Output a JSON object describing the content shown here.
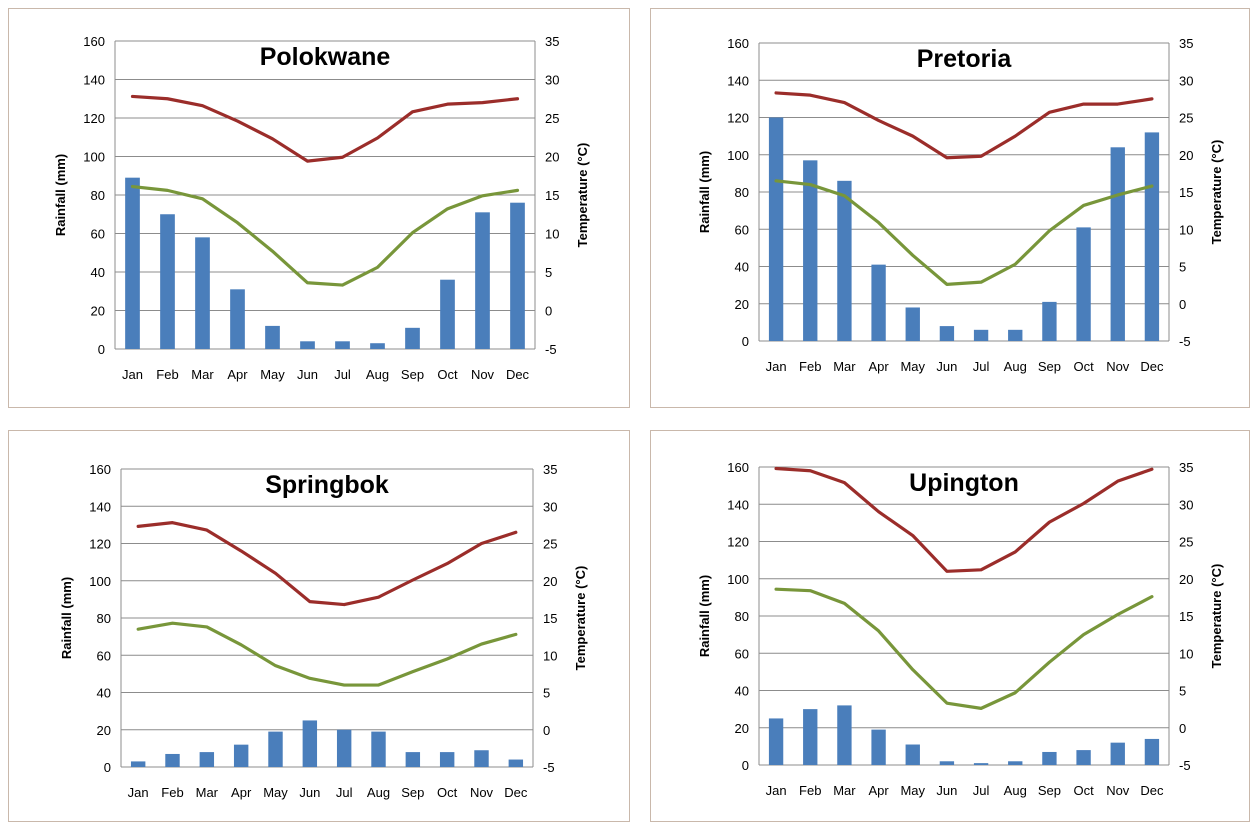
{
  "chart_data": [
    {
      "type": "bar",
      "title": "Polokwane",
      "categories": [
        "Jan",
        "Feb",
        "Mar",
        "Apr",
        "May",
        "Jun",
        "Jul",
        "Aug",
        "Sep",
        "Oct",
        "Nov",
        "Dec"
      ],
      "ylabel": "Rainfall  (mm)",
      "y2label": "Temperature (°C)",
      "ylim": [
        0,
        160
      ],
      "y2lim": [
        -5,
        35
      ],
      "yticks": [
        "0",
        "20",
        "40",
        "60",
        "80",
        "100",
        "120",
        "140",
        "160"
      ],
      "y2ticks": [
        "-5",
        "0",
        "5",
        "10",
        "15",
        "20",
        "25",
        "30",
        "35"
      ],
      "grid": true,
      "series": [
        {
          "type": "bar",
          "axis": "left",
          "color": "#4a7ebb",
          "values": [
            89,
            70,
            58,
            31,
            12,
            4,
            4,
            3,
            11,
            36,
            71,
            76
          ]
        },
        {
          "type": "line",
          "axis": "right",
          "color": "#9b2d2a",
          "values": [
            27.8,
            27.5,
            26.6,
            24.6,
            22.3,
            19.4,
            19.9,
            22.4,
            25.8,
            26.8,
            27.0,
            27.5
          ]
        },
        {
          "type": "line",
          "axis": "right",
          "color": "#78963a",
          "values": [
            16.1,
            15.6,
            14.5,
            11.4,
            7.7,
            3.6,
            3.3,
            5.6,
            10.1,
            13.2,
            14.9,
            15.6
          ]
        }
      ]
    },
    {
      "type": "bar",
      "title": "Pretoria",
      "categories": [
        "Jan",
        "Feb",
        "Mar",
        "Apr",
        "May",
        "Jun",
        "Jul",
        "Aug",
        "Sep",
        "Oct",
        "Nov",
        "Dec"
      ],
      "ylabel": "Rainfall  (mm)",
      "y2label": "Temperature (°C)",
      "ylim": [
        0,
        160
      ],
      "y2lim": [
        -5,
        35
      ],
      "yticks": [
        "0",
        "20",
        "40",
        "60",
        "80",
        "100",
        "120",
        "140",
        "160"
      ],
      "y2ticks": [
        "-5",
        "0",
        "5",
        "10",
        "15",
        "20",
        "25",
        "30",
        "35"
      ],
      "grid": true,
      "series": [
        {
          "type": "bar",
          "axis": "left",
          "color": "#4a7ebb",
          "values": [
            120,
            97,
            86,
            41,
            18,
            8,
            6,
            6,
            21,
            61,
            104,
            112
          ]
        },
        {
          "type": "line",
          "axis": "right",
          "color": "#9b2d2a",
          "values": [
            28.3,
            28.0,
            27.0,
            24.6,
            22.5,
            19.6,
            19.8,
            22.5,
            25.7,
            26.8,
            26.8,
            27.5
          ]
        },
        {
          "type": "line",
          "axis": "right",
          "color": "#78963a",
          "values": [
            16.5,
            16.0,
            14.5,
            10.9,
            6.5,
            2.6,
            2.9,
            5.3,
            9.8,
            13.2,
            14.6,
            15.8
          ]
        }
      ]
    },
    {
      "type": "bar",
      "title": "Springbok",
      "categories": [
        "Jan",
        "Feb",
        "Mar",
        "Apr",
        "May",
        "Jun",
        "Jul",
        "Aug",
        "Sep",
        "Oct",
        "Nov",
        "Dec"
      ],
      "ylabel": "Rainfall  (mm)",
      "y2label": "Temperature (°C)",
      "ylim": [
        0,
        160
      ],
      "y2lim": [
        -5,
        35
      ],
      "yticks": [
        "0",
        "20",
        "40",
        "60",
        "80",
        "100",
        "120",
        "140",
        "160"
      ],
      "y2ticks": [
        "-5",
        "0",
        "5",
        "10",
        "15",
        "20",
        "25",
        "30",
        "35"
      ],
      "grid": true,
      "series": [
        {
          "type": "bar",
          "axis": "left",
          "color": "#4a7ebb",
          "values": [
            3,
            7,
            8,
            12,
            19,
            25,
            20,
            19,
            8,
            8,
            9,
            4
          ]
        },
        {
          "type": "line",
          "axis": "right",
          "color": "#9b2d2a",
          "values": [
            27.3,
            27.8,
            26.8,
            24.0,
            21.0,
            17.2,
            16.8,
            17.8,
            20.1,
            22.3,
            25.0,
            26.5
          ]
        },
        {
          "type": "line",
          "axis": "right",
          "color": "#78963a",
          "values": [
            13.5,
            14.3,
            13.8,
            11.4,
            8.6,
            6.9,
            6.0,
            6.0,
            7.8,
            9.5,
            11.5,
            12.8
          ]
        }
      ]
    },
    {
      "type": "bar",
      "title": "Upington",
      "categories": [
        "Jan",
        "Feb",
        "Mar",
        "Apr",
        "May",
        "Jun",
        "Jul",
        "Aug",
        "Sep",
        "Oct",
        "Nov",
        "Dec"
      ],
      "ylabel": "Rainfall  (mm)",
      "y2label": "Temperature (°C)",
      "ylim": [
        0,
        160
      ],
      "y2lim": [
        -5,
        35
      ],
      "yticks": [
        "0",
        "20",
        "40",
        "60",
        "80",
        "100",
        "120",
        "140",
        "160"
      ],
      "y2ticks": [
        "-5",
        "0",
        "5",
        "10",
        "15",
        "20",
        "25",
        "30",
        "35"
      ],
      "grid": true,
      "series": [
        {
          "type": "bar",
          "axis": "left",
          "color": "#4a7ebb",
          "values": [
            25,
            30,
            32,
            19,
            11,
            2,
            1,
            2,
            7,
            8,
            12,
            14
          ]
        },
        {
          "type": "line",
          "axis": "right",
          "color": "#9b2d2a",
          "values": [
            34.8,
            34.5,
            32.9,
            29.0,
            25.8,
            21.0,
            21.2,
            23.6,
            27.6,
            30.1,
            33.1,
            34.7
          ]
        },
        {
          "type": "line",
          "axis": "right",
          "color": "#78963a",
          "values": [
            18.6,
            18.4,
            16.7,
            13.0,
            7.8,
            3.3,
            2.6,
            4.7,
            8.8,
            12.5,
            15.2,
            17.6
          ]
        }
      ]
    }
  ]
}
